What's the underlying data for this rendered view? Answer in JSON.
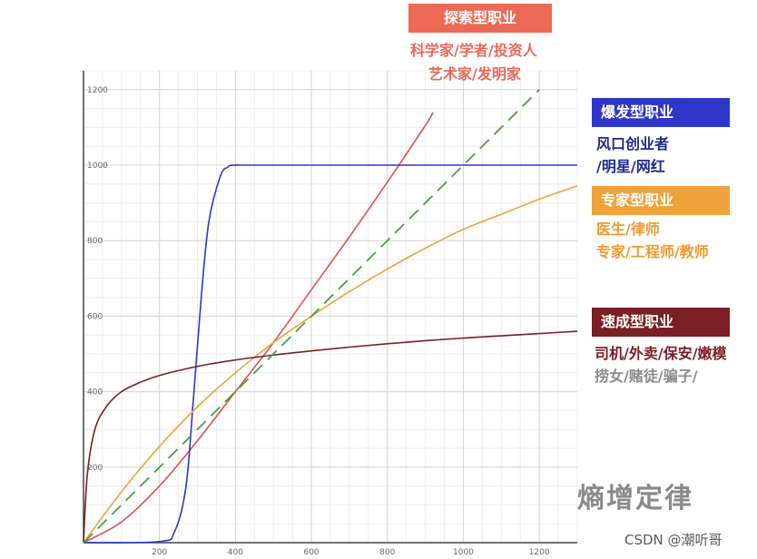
{
  "chart_data": {
    "type": "line",
    "xlim": [
      0,
      1300
    ],
    "ylim": [
      0,
      1250
    ],
    "x_ticks": [
      200,
      400,
      600,
      800,
      1000,
      1200
    ],
    "y_ticks": [
      200,
      400,
      600,
      800,
      1000,
      1200
    ],
    "grid": true,
    "series": [
      {
        "color": "#d9534f",
        "x": [
          0,
          100,
          200,
          300,
          400,
          500,
          600,
          700,
          800,
          900,
          920
        ],
        "y": [
          0,
          55,
          150,
          270,
          400,
          530,
          670,
          810,
          955,
          1105,
          1140
        ]
      },
      {
        "color": "#2e37c7",
        "x": [
          0,
          200,
          240,
          270,
          290,
          310,
          330,
          360,
          380,
          400,
          500,
          1300
        ],
        "y": [
          0,
          3,
          30,
          150,
          390,
          650,
          850,
          970,
          995,
          1000,
          1000,
          1000
        ]
      },
      {
        "color": "#f0a23a",
        "x": [
          0,
          100,
          200,
          300,
          400,
          500,
          600,
          700,
          800,
          900,
          1000,
          1100,
          1200,
          1300
        ],
        "y": [
          0,
          135,
          255,
          360,
          450,
          530,
          600,
          665,
          725,
          780,
          830,
          870,
          910,
          945
        ]
      },
      {
        "color": "#7a1f25",
        "x": [
          0,
          10,
          30,
          60,
          100,
          150,
          200,
          300,
          400,
          500,
          600,
          700,
          800,
          900,
          1000,
          1100,
          1200,
          1300
        ],
        "y": [
          0,
          180,
          300,
          360,
          400,
          425,
          443,
          467,
          484,
          497,
          508,
          518,
          527,
          535,
          542,
          548,
          554,
          560
        ]
      },
      {
        "color": "#4a9e4a",
        "dashed": true,
        "x": [
          0,
          1200
        ],
        "y": [
          0,
          1200
        ]
      }
    ]
  },
  "labels": {
    "explore": {
      "title": "探索型职业",
      "line1": "科学家/学者/投资人",
      "line2": "艺术家/发明家",
      "bg": "#ec6a55",
      "text_color": "#e8695a"
    },
    "burst": {
      "title": "爆发型职业",
      "line1": "风口创业者",
      "line2": "/明星/网红",
      "bg": "#2e37c7",
      "text_color": "#1f2a8c"
    },
    "expert": {
      "title": "专家型职业",
      "line1": "医生/律师",
      "line2": "专家/工程师/教师",
      "bg": "#f0a23a",
      "text_color": "#ee9a2e"
    },
    "fast": {
      "title": "速成型职业",
      "line1": "司机/外卖/保安/嫩模",
      "line2": "捞女/赌徒/骗子/",
      "bg": "#7a1f25",
      "text_color": "#7a1f25",
      "text_color2": "#8a8a8a"
    }
  },
  "watermark": "熵增定律",
  "credit": "CSDN @潮听哥"
}
